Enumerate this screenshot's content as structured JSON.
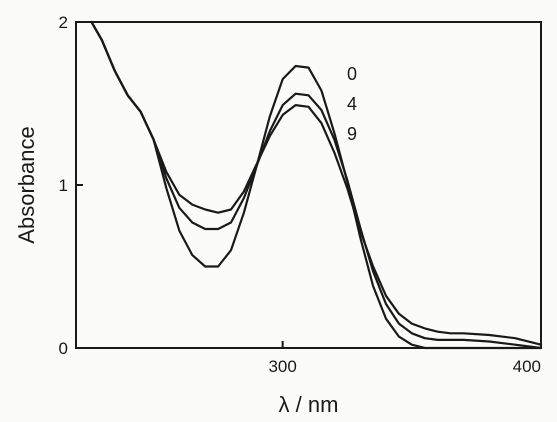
{
  "chart_data": {
    "type": "line",
    "xlabel": "λ / nm",
    "ylabel": "Absorbance",
    "xlim": [
      220,
      400
    ],
    "ylim": [
      0,
      2
    ],
    "xticks": [
      300,
      400
    ],
    "yticks": [
      0,
      1,
      2
    ],
    "legend_placement": "top-right",
    "series": [
      {
        "name": "0",
        "x": [
          226,
          230,
          235,
          240,
          245,
          250,
          255,
          260,
          265,
          270,
          275,
          280,
          285,
          290,
          295,
          300,
          305,
          310,
          315,
          320,
          325,
          330,
          335,
          340,
          345,
          350,
          355,
          360,
          365,
          370,
          380,
          390,
          400
        ],
        "y": [
          2.0,
          1.89,
          1.7,
          1.55,
          1.45,
          1.28,
          0.98,
          0.72,
          0.57,
          0.5,
          0.5,
          0.6,
          0.83,
          1.12,
          1.42,
          1.65,
          1.73,
          1.72,
          1.58,
          1.32,
          1.02,
          0.68,
          0.38,
          0.18,
          0.07,
          0.02,
          0.0,
          0.0,
          0.0,
          0.0,
          0.0,
          0.0,
          0.0
        ]
      },
      {
        "name": "4",
        "x": [
          226,
          230,
          235,
          240,
          245,
          250,
          255,
          260,
          265,
          270,
          275,
          280,
          285,
          290,
          295,
          300,
          305,
          310,
          315,
          320,
          325,
          330,
          335,
          340,
          345,
          350,
          355,
          360,
          365,
          370,
          380,
          390,
          400
        ],
        "y": [
          2.0,
          1.89,
          1.7,
          1.55,
          1.45,
          1.28,
          1.04,
          0.86,
          0.77,
          0.73,
          0.73,
          0.77,
          0.92,
          1.12,
          1.33,
          1.49,
          1.56,
          1.55,
          1.46,
          1.28,
          1.03,
          0.74,
          0.47,
          0.27,
          0.15,
          0.09,
          0.06,
          0.05,
          0.05,
          0.05,
          0.04,
          0.02,
          0.0
        ]
      },
      {
        "name": "9",
        "x": [
          226,
          230,
          235,
          240,
          245,
          250,
          255,
          260,
          265,
          270,
          275,
          280,
          285,
          290,
          295,
          300,
          305,
          310,
          315,
          320,
          325,
          330,
          335,
          340,
          345,
          350,
          355,
          360,
          365,
          370,
          380,
          390,
          400
        ],
        "y": [
          2.0,
          1.89,
          1.7,
          1.55,
          1.45,
          1.28,
          1.08,
          0.94,
          0.88,
          0.85,
          0.83,
          0.85,
          0.96,
          1.13,
          1.3,
          1.43,
          1.49,
          1.48,
          1.38,
          1.2,
          0.98,
          0.72,
          0.5,
          0.32,
          0.21,
          0.15,
          0.12,
          0.1,
          0.09,
          0.09,
          0.08,
          0.06,
          0.02
        ]
      }
    ]
  }
}
